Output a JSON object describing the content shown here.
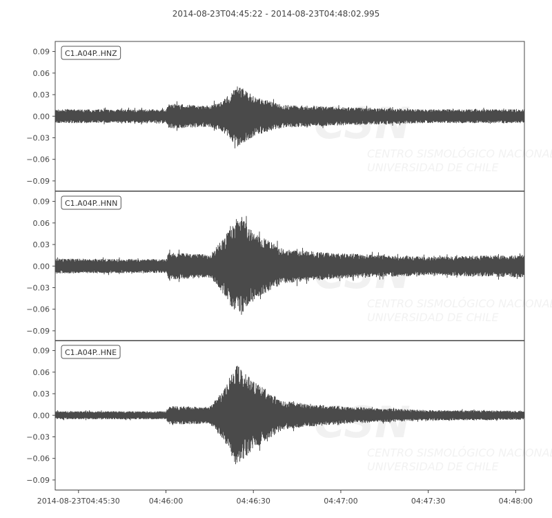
{
  "chart_data": {
    "type": "line",
    "title": "2014-08-23T04:45:22  -  2014-08-23T04:48:02.995",
    "xlim": [
      "2014-08-23T04:45:22",
      "2014-08-23T04:48:02.995"
    ],
    "x_ticks": [
      "2014-08-23T04:45:30",
      "04:46:00",
      "04:46:30",
      "04:47:00",
      "04:47:30",
      "04:48:00"
    ],
    "y_ticks": [
      "0.09",
      "0.06",
      "0.03",
      "0.00",
      "−0.03",
      "−0.06",
      "−0.09"
    ],
    "ylim": [
      -0.104,
      0.104
    ],
    "grid": false,
    "line_color": "#4a4a4a",
    "watermark": {
      "logo": "CSN",
      "line1": "CENTRO SISMOLÓGICO NACIONAL",
      "line2": "UNIVERSIDAD DE CHILE"
    },
    "series": [
      {
        "name": "C1.A04P..HNZ",
        "envelope": [
          [
            "04:45:22",
            0.012
          ],
          [
            "04:46:00",
            0.012
          ],
          [
            "04:46:01",
            0.022
          ],
          [
            "04:46:15",
            0.018
          ],
          [
            "04:46:20",
            0.03
          ],
          [
            "04:46:25",
            0.055
          ],
          [
            "04:46:30",
            0.035
          ],
          [
            "04:46:40",
            0.02
          ],
          [
            "04:47:00",
            0.016
          ],
          [
            "04:47:30",
            0.012
          ],
          [
            "04:48:02.995",
            0.012
          ]
        ]
      },
      {
        "name": "C1.A04P..HNN",
        "envelope": [
          [
            "04:45:22",
            0.013
          ],
          [
            "04:46:00",
            0.012
          ],
          [
            "04:46:01",
            0.024
          ],
          [
            "04:46:15",
            0.02
          ],
          [
            "04:46:20",
            0.05
          ],
          [
            "04:46:25",
            0.092
          ],
          [
            "04:46:30",
            0.06
          ],
          [
            "04:46:40",
            0.03
          ],
          [
            "04:47:00",
            0.022
          ],
          [
            "04:47:30",
            0.016
          ],
          [
            "04:48:02.995",
            0.02
          ]
        ]
      },
      {
        "name": "C1.A04P..HNE",
        "envelope": [
          [
            "04:45:22",
            0.007
          ],
          [
            "04:46:00",
            0.007
          ],
          [
            "04:46:01",
            0.016
          ],
          [
            "04:46:15",
            0.015
          ],
          [
            "04:46:20",
            0.045
          ],
          [
            "04:46:24",
            0.09
          ],
          [
            "04:46:30",
            0.06
          ],
          [
            "04:46:40",
            0.025
          ],
          [
            "04:47:00",
            0.015
          ],
          [
            "04:47:30",
            0.009
          ],
          [
            "04:48:02.995",
            0.008
          ]
        ]
      }
    ]
  }
}
